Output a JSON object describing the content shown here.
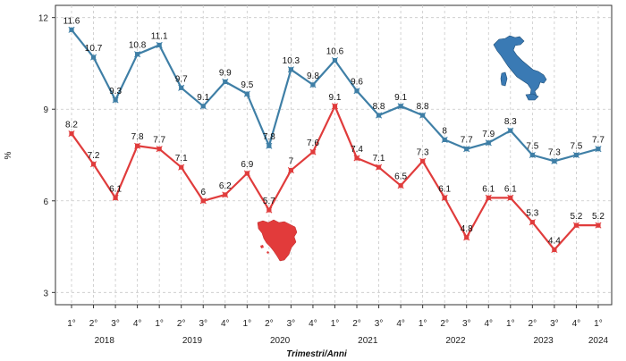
{
  "chart_data": {
    "type": "line",
    "title": "",
    "xlabel": "Trimestri/Anni",
    "ylabel": "%",
    "ylim": [
      2.6,
      12.4
    ],
    "yticks": [
      3,
      6,
      9,
      12
    ],
    "grid": true,
    "quarter_labels": [
      "1°",
      "2°",
      "3°",
      "4°",
      "1°",
      "2°",
      "3°",
      "4°",
      "1°",
      "2°",
      "3°",
      "4°",
      "1°",
      "2°",
      "3°",
      "4°",
      "1°",
      "2°",
      "3°",
      "4°",
      "1°",
      "2°",
      "3°",
      "4°",
      "1°"
    ],
    "years": [
      {
        "label": "2018",
        "start": 0,
        "end": 3
      },
      {
        "label": "2019",
        "start": 4,
        "end": 7
      },
      {
        "label": "2020",
        "start": 8,
        "end": 11
      },
      {
        "label": "2021",
        "start": 12,
        "end": 15
      },
      {
        "label": "2022",
        "start": 16,
        "end": 19
      },
      {
        "label": "2023",
        "start": 20,
        "end": 23
      },
      {
        "label": "2024",
        "start": 24,
        "end": 24
      }
    ],
    "series": [
      {
        "color": "#3f7fa6",
        "marker_icon": "italy-map-icon",
        "values": [
          11.6,
          10.7,
          9.3,
          10.8,
          11.1,
          9.7,
          9.1,
          9.9,
          9.5,
          7.8,
          10.3,
          9.8,
          10.6,
          9.6,
          8.8,
          9.1,
          8.8,
          8.0,
          7.7,
          7.9,
          8.3,
          7.5,
          7.3,
          7.5,
          7.7
        ],
        "labels": [
          "11.6",
          "10.7",
          "9.3",
          "10.8",
          "11.1",
          "9.7",
          "9.1",
          "9.9",
          "9.5",
          "7.8",
          "10.3",
          "9.8",
          "10.6",
          "9.6",
          "8.8",
          "9.1",
          "8.8",
          "8",
          "7.7",
          "7.9",
          "8.3",
          "7.5",
          "7.3",
          "7.5",
          "7.7"
        ]
      },
      {
        "color": "#e03c3c",
        "marker_icon": "tuscany-map-icon",
        "values": [
          8.2,
          7.2,
          6.1,
          7.8,
          7.7,
          7.1,
          6.0,
          6.2,
          6.9,
          5.7,
          7.0,
          7.6,
          9.1,
          7.4,
          7.1,
          6.5,
          7.3,
          6.1,
          4.8,
          6.1,
          6.1,
          5.3,
          4.4,
          5.2,
          5.2
        ],
        "labels": [
          "8.2",
          "7.2",
          "6.1",
          "7.8",
          "7.7",
          "7.1",
          "6",
          "6.2",
          "6.9",
          "5.7",
          "7",
          "7.6",
          "9.1",
          "7.4",
          "7.1",
          "6.5",
          "7.3",
          "6.1",
          "4.8",
          "6.1",
          "6.1",
          "5.3",
          "4.4",
          "5.2",
          "5.2"
        ]
      }
    ]
  }
}
